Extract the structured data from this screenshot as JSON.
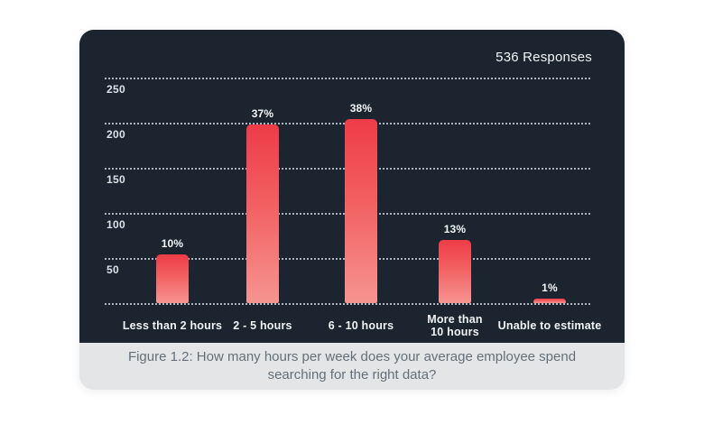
{
  "chart_data": {
    "type": "bar",
    "responses_label": "536 Responses",
    "total_responses": 536,
    "categories": [
      "Less than 2 hours",
      "2 - 5 hours",
      "6 - 10 hours",
      "More than\n10 hours",
      "Unable to estimate"
    ],
    "values_percent": [
      10,
      37,
      38,
      13,
      1
    ],
    "bar_labels": [
      "10%",
      "37%",
      "38%",
      "13%",
      "1%"
    ],
    "values_count_estimated": [
      54,
      198,
      204,
      70,
      5
    ],
    "ylabel": "",
    "xlabel": "",
    "ylim": [
      0,
      250
    ],
    "yticks": [
      250,
      200,
      150,
      100,
      50
    ],
    "grid": "dotted horizontal lines, labels below each line",
    "legend": "none",
    "colors": {
      "panel_background": "#1b242f",
      "bar_gradient_top": "#ee3c47",
      "bar_gradient_bottom": "#f69490",
      "gridline": "#d6dee7",
      "axis_text": "#dde2e8",
      "caption_background": "#e4e5e7",
      "caption_text": "#666f77"
    }
  },
  "caption": {
    "text": "Figure 1.2: How many hours per week does your average employee spend searching for the right data?"
  }
}
